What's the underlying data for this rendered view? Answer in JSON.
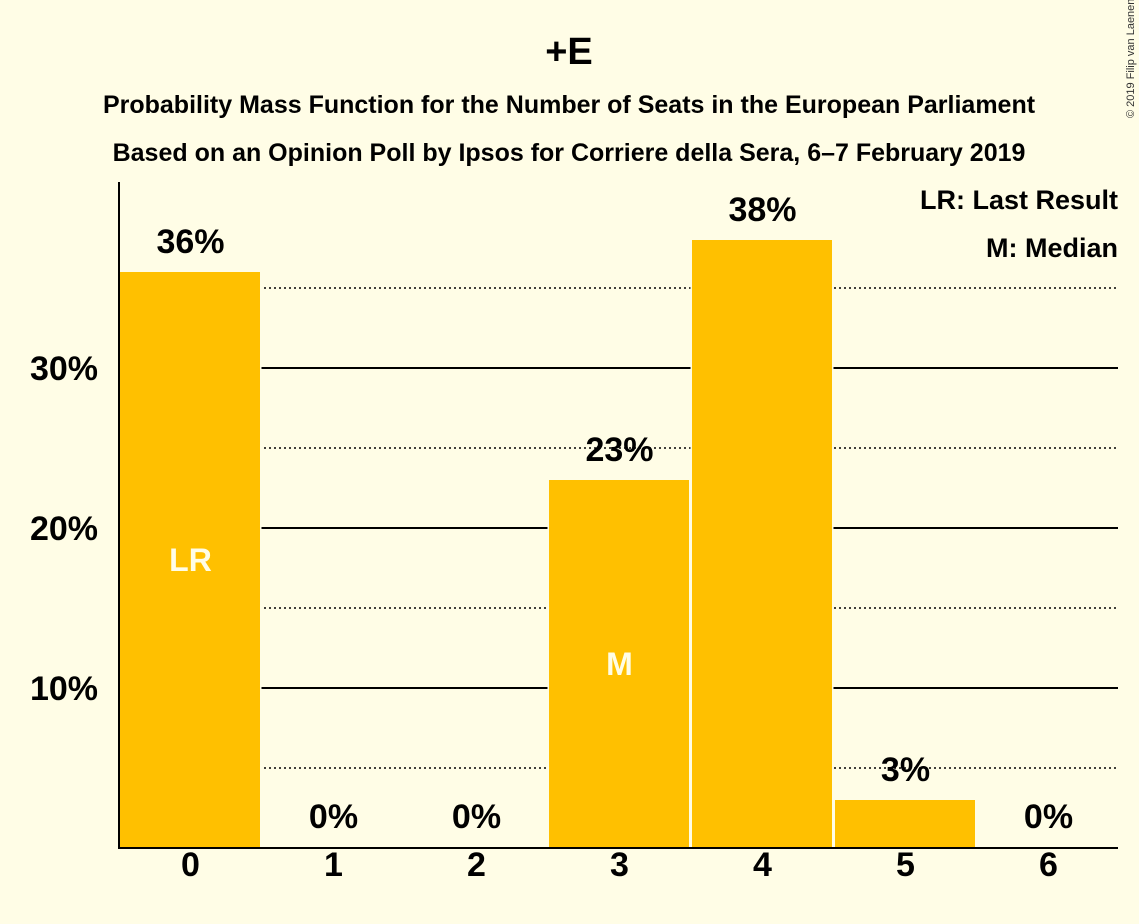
{
  "title": "+E",
  "subtitle_line1": "Probability Mass Function for the Number of Seats in the European Parliament",
  "subtitle_line2": "Based on an Opinion Poll by Ipsos for Corriere della Sera, 6–7 February 2019",
  "copyright": "© 2019 Filip van Laenen",
  "legend": {
    "last_result": "LR: Last Result",
    "median": "M: Median"
  },
  "colors": {
    "background": "#FFFDE6",
    "bar": "#FFC000"
  },
  "chart_data": {
    "type": "bar",
    "categories": [
      "0",
      "1",
      "2",
      "3",
      "4",
      "5",
      "6"
    ],
    "values": [
      36,
      0,
      0,
      23,
      38,
      3,
      0
    ],
    "value_labels": [
      "36%",
      "0%",
      "0%",
      "23%",
      "38%",
      "3%",
      "0%"
    ],
    "bar_markers": [
      "LR",
      "",
      "",
      "M",
      "",
      "",
      ""
    ],
    "y_ticks": [
      {
        "value": 10,
        "label": "10%"
      },
      {
        "value": 20,
        "label": "20%"
      },
      {
        "value": 30,
        "label": "30%"
      }
    ],
    "minor_gridlines": [
      5,
      15,
      25,
      35
    ],
    "ylim": [
      0,
      41.5
    ],
    "xlabel": "",
    "ylabel": ""
  }
}
